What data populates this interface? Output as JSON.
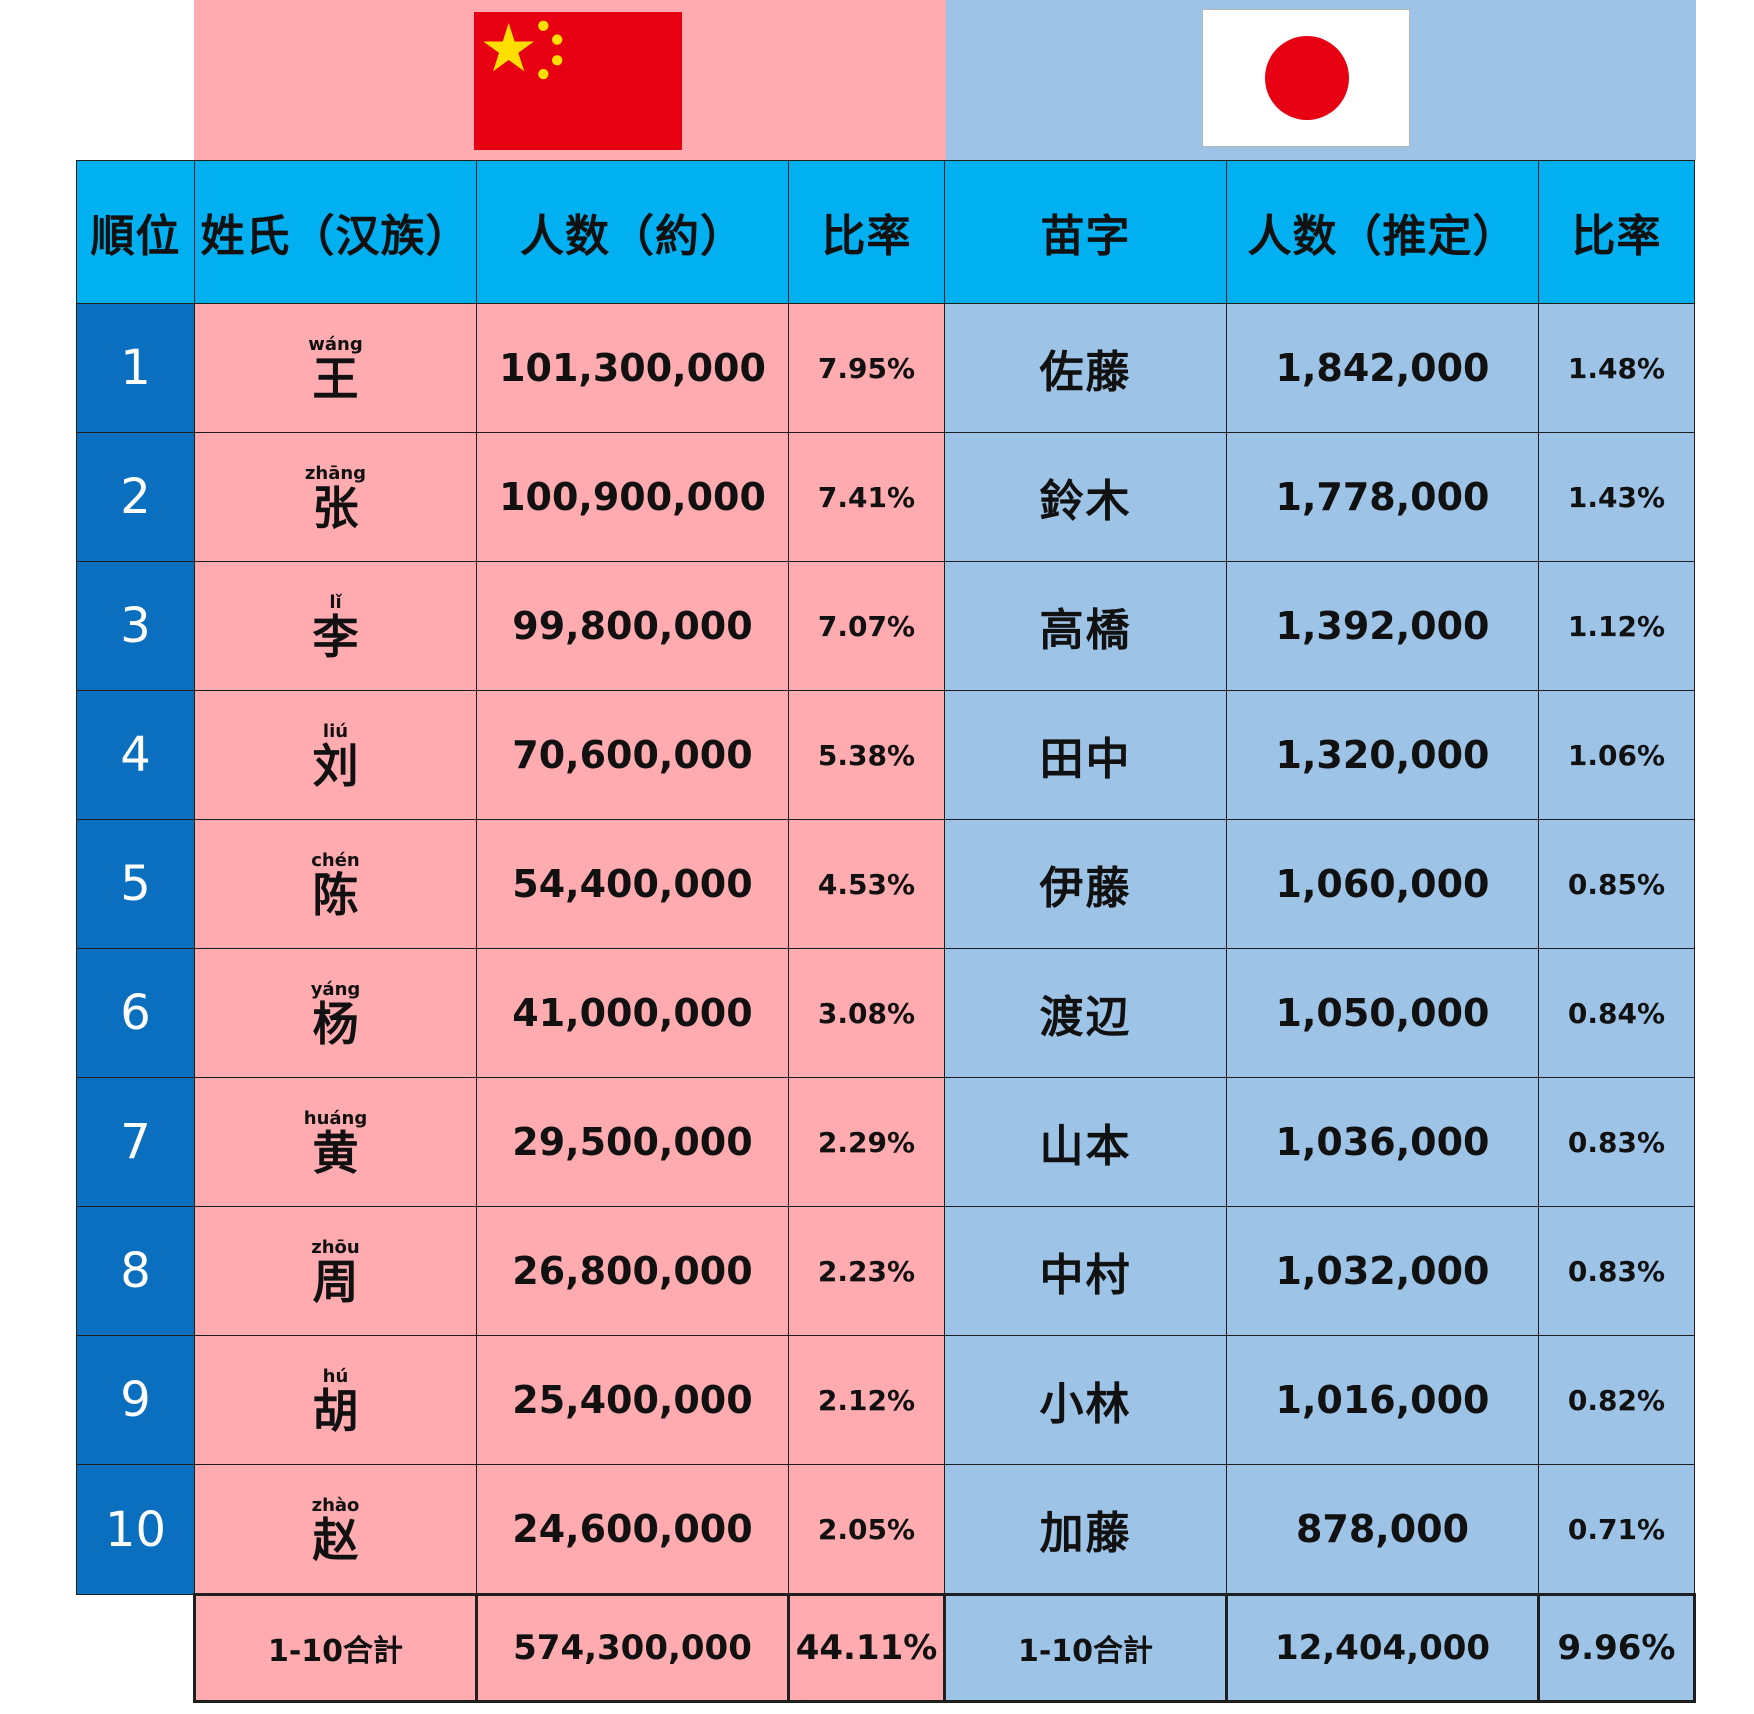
{
  "header": {
    "rank": "順位",
    "cn_surname": "姓氏（汉族）",
    "cn_count": "人数（約）",
    "cn_ratio": "比率",
    "jp_surname": "苗字",
    "jp_count": "人数（推定）",
    "jp_ratio": "比率"
  },
  "flags": {
    "china": {
      "icon": "china-flag-icon",
      "color": "#e60012",
      "star": "#ffde00"
    },
    "japan": {
      "icon": "japan-flag-icon",
      "color": "#e60012",
      "ground": "#ffffff"
    }
  },
  "colors": {
    "china_bg": "#ffabb0",
    "japan_bg": "#9dc3e6",
    "header_bg": "#00b0f0",
    "rank_bg": "#0a6fbf"
  },
  "rows": [
    {
      "rank": "1",
      "pinyin": "wáng",
      "cn_name": "王",
      "cn_count": "101,300,000",
      "cn_ratio": "7.95%",
      "jp_name": "佐藤",
      "jp_count": "1,842,000",
      "jp_ratio": "1.48%"
    },
    {
      "rank": "2",
      "pinyin": "zhāng",
      "cn_name": "张",
      "cn_count": "100,900,000",
      "cn_ratio": "7.41%",
      "jp_name": "鈴木",
      "jp_count": "1,778,000",
      "jp_ratio": "1.43%"
    },
    {
      "rank": "3",
      "pinyin": "lǐ",
      "cn_name": "李",
      "cn_count": "99,800,000",
      "cn_ratio": "7.07%",
      "jp_name": "高橋",
      "jp_count": "1,392,000",
      "jp_ratio": "1.12%"
    },
    {
      "rank": "4",
      "pinyin": "liú",
      "cn_name": "刘",
      "cn_count": "70,600,000",
      "cn_ratio": "5.38%",
      "jp_name": "田中",
      "jp_count": "1,320,000",
      "jp_ratio": "1.06%"
    },
    {
      "rank": "5",
      "pinyin": "chén",
      "cn_name": "陈",
      "cn_count": "54,400,000",
      "cn_ratio": "4.53%",
      "jp_name": "伊藤",
      "jp_count": "1,060,000",
      "jp_ratio": "0.85%"
    },
    {
      "rank": "6",
      "pinyin": "yáng",
      "cn_name": "杨",
      "cn_count": "41,000,000",
      "cn_ratio": "3.08%",
      "jp_name": "渡辺",
      "jp_count": "1,050,000",
      "jp_ratio": "0.84%"
    },
    {
      "rank": "7",
      "pinyin": "huáng",
      "cn_name": "黄",
      "cn_count": "29,500,000",
      "cn_ratio": "2.29%",
      "jp_name": "山本",
      "jp_count": "1,036,000",
      "jp_ratio": "0.83%"
    },
    {
      "rank": "8",
      "pinyin": "zhōu",
      "cn_name": "周",
      "cn_count": "26,800,000",
      "cn_ratio": "2.23%",
      "jp_name": "中村",
      "jp_count": "1,032,000",
      "jp_ratio": "0.83%"
    },
    {
      "rank": "9",
      "pinyin": "hú",
      "cn_name": "胡",
      "cn_count": "25,400,000",
      "cn_ratio": "2.12%",
      "jp_name": "小林",
      "jp_count": "1,016,000",
      "jp_ratio": "0.82%"
    },
    {
      "rank": "10",
      "pinyin": "zhào",
      "cn_name": "赵",
      "cn_count": "24,600,000",
      "cn_ratio": "2.05%",
      "jp_name": "加藤",
      "jp_count": "878,000",
      "jp_ratio": "0.71%"
    }
  ],
  "total": {
    "cn_label": "1-10合計",
    "cn_count": "574,300,000",
    "cn_ratio": "44.11%",
    "jp_label": "1-10合計",
    "jp_count": "12,404,000",
    "jp_ratio": "9.96%"
  }
}
